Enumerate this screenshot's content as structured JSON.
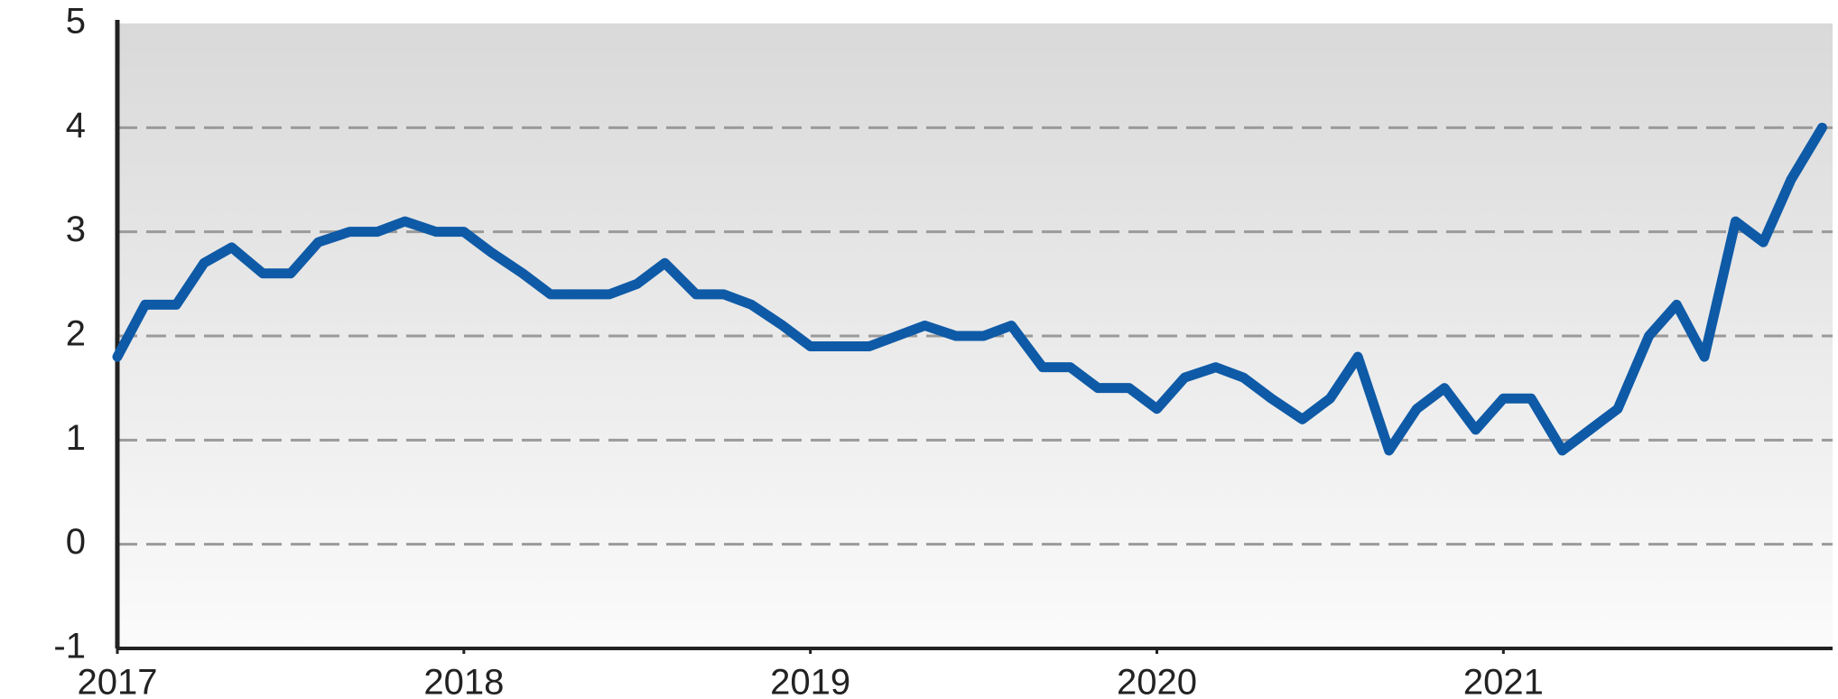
{
  "chart_data": {
    "type": "line",
    "x": [
      2017,
      2017.08,
      2017.17,
      2017.25,
      2017.33,
      2017.42,
      2017.5,
      2017.58,
      2017.67,
      2017.75,
      2017.83,
      2017.92,
      2018,
      2018.08,
      2018.17,
      2018.25,
      2018.33,
      2018.42,
      2018.5,
      2018.58,
      2018.67,
      2018.75,
      2018.83,
      2018.92,
      2019,
      2019.08,
      2019.17,
      2019.25,
      2019.33,
      2019.42,
      2019.5,
      2019.58,
      2019.67,
      2019.75,
      2019.83,
      2019.92,
      2020,
      2020.08,
      2020.17,
      2020.25,
      2020.33,
      2020.42,
      2020.5,
      2020.58,
      2020.67,
      2020.75,
      2020.83,
      2020.92,
      2021,
      2021.08,
      2021.17,
      2021.25,
      2021.33,
      2021.42,
      2021.5,
      2021.58,
      2021.67,
      2021.75,
      2021.83,
      2021.92
    ],
    "series": [
      {
        "color": "#0e5aa7",
        "values": [
          1.8,
          2.3,
          2.3,
          2.7,
          2.85,
          2.6,
          2.6,
          2.9,
          3.0,
          3.0,
          3.1,
          3.0,
          3.0,
          2.8,
          2.6,
          2.4,
          2.4,
          2.4,
          2.5,
          2.7,
          2.4,
          2.4,
          2.3,
          2.1,
          1.9,
          1.9,
          1.9,
          2.0,
          2.1,
          2.0,
          2.0,
          2.1,
          1.7,
          1.7,
          1.5,
          1.5,
          1.3,
          1.6,
          1.7,
          1.6,
          1.4,
          1.2,
          1.4,
          1.8,
          0.9,
          1.3,
          1.5,
          1.1,
          1.4,
          1.4,
          0.9,
          1.1,
          1.3,
          2.0,
          2.3,
          1.8,
          3.1,
          2.9,
          3.5,
          4.0
        ]
      }
    ],
    "xlim": [
      2017,
      2021.95
    ],
    "xticks": [
      2017,
      2018,
      2019,
      2020,
      2021
    ],
    "ylim": [
      -1,
      5
    ],
    "yticks": [
      -1,
      0,
      1,
      2,
      3,
      4,
      5
    ],
    "grid": true
  }
}
